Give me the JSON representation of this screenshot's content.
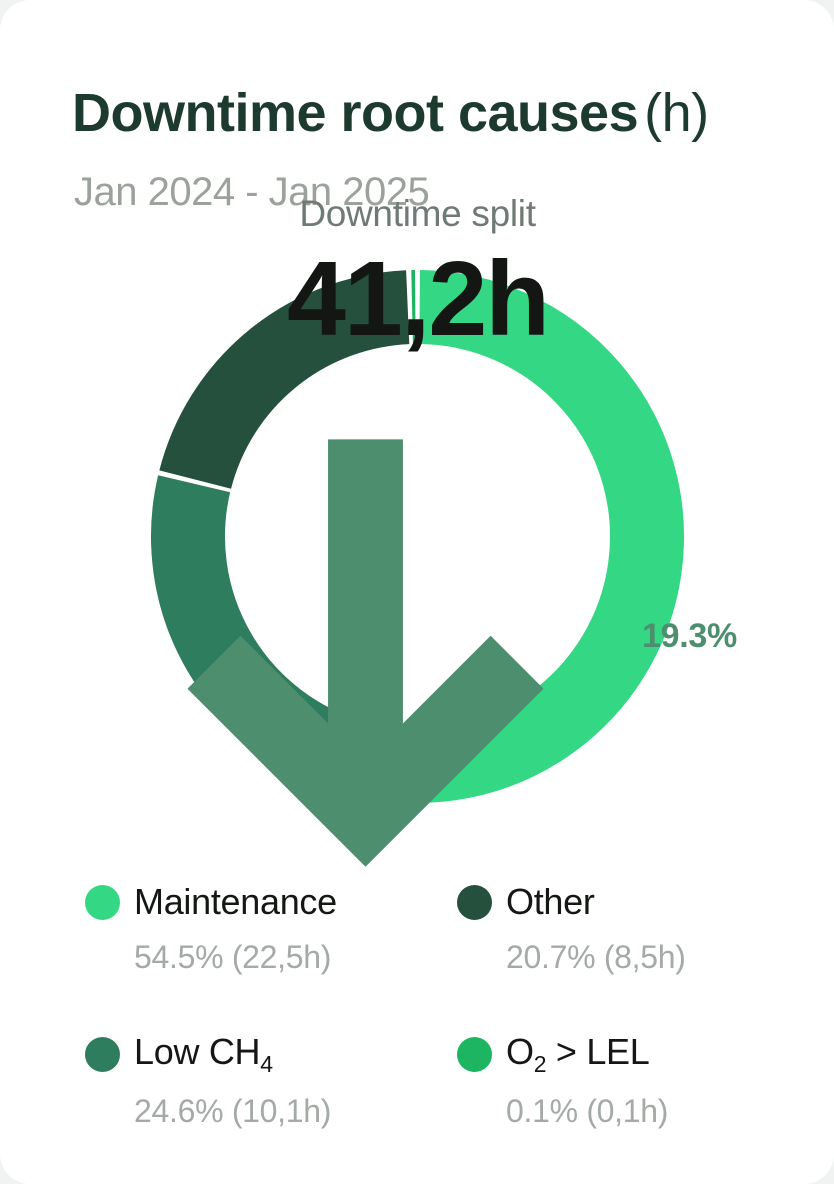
{
  "header": {
    "title": "Downtime root causes",
    "unit": "(h)",
    "subtitle": "Jan 2024 - Jan 2025"
  },
  "center": {
    "label": "Downtime split",
    "value": "41,2h",
    "delta": "19.3%",
    "delta_direction": "down"
  },
  "chart_data": {
    "type": "pie",
    "donut": true,
    "title": "Downtime root causes (h)",
    "period": "Jan 2024 - Jan 2025",
    "center_label": "Downtime split",
    "total_value_display": "41,2h",
    "total_hours": 41.2,
    "delta_percent": -19.3,
    "delta_display": "19.3%",
    "legend_position": "bottom",
    "segments": [
      {
        "label": "Maintenance",
        "percent": 54.5,
        "hours": 22.5,
        "hours_display": "22,5h",
        "color": "#34d884"
      },
      {
        "label": "Low CH4",
        "percent": 24.6,
        "hours": 10.1,
        "hours_display": "10,1h",
        "color": "#2e7d5f"
      },
      {
        "label": "Other",
        "percent": 20.7,
        "hours": 8.5,
        "hours_display": "8,5h",
        "color": "#24503d"
      },
      {
        "label": "O2 > LEL",
        "percent": 0.1,
        "hours": 0.1,
        "hours_display": "0,1h",
        "color": "#1db462"
      }
    ]
  },
  "legend": {
    "items": [
      {
        "label_main": "Maintenance",
        "label_sub": "",
        "label_after": "",
        "value": "54.5% (22,5h)",
        "color": "#34d884"
      },
      {
        "label_main": "Other",
        "label_sub": "",
        "label_after": "",
        "value": "20.7% (8,5h)",
        "color": "#24503d"
      },
      {
        "label_main": "Low CH",
        "label_sub": "4",
        "label_after": "",
        "value": "24.6% (10,1h)",
        "color": "#2e7d5f"
      },
      {
        "label_main": "O",
        "label_sub": "2",
        "label_after": " > LEL",
        "value": "0.1% (0,1h)",
        "color": "#1db462"
      }
    ]
  },
  "colors": {
    "title": "#1d3a2f",
    "subtitle": "#9ba29b",
    "center_label": "#6f7a75",
    "center_value": "#131613",
    "delta_green": "#4d8e6e",
    "legend_value_gray": "#a4aaa5",
    "card_background": "#ffffff"
  }
}
